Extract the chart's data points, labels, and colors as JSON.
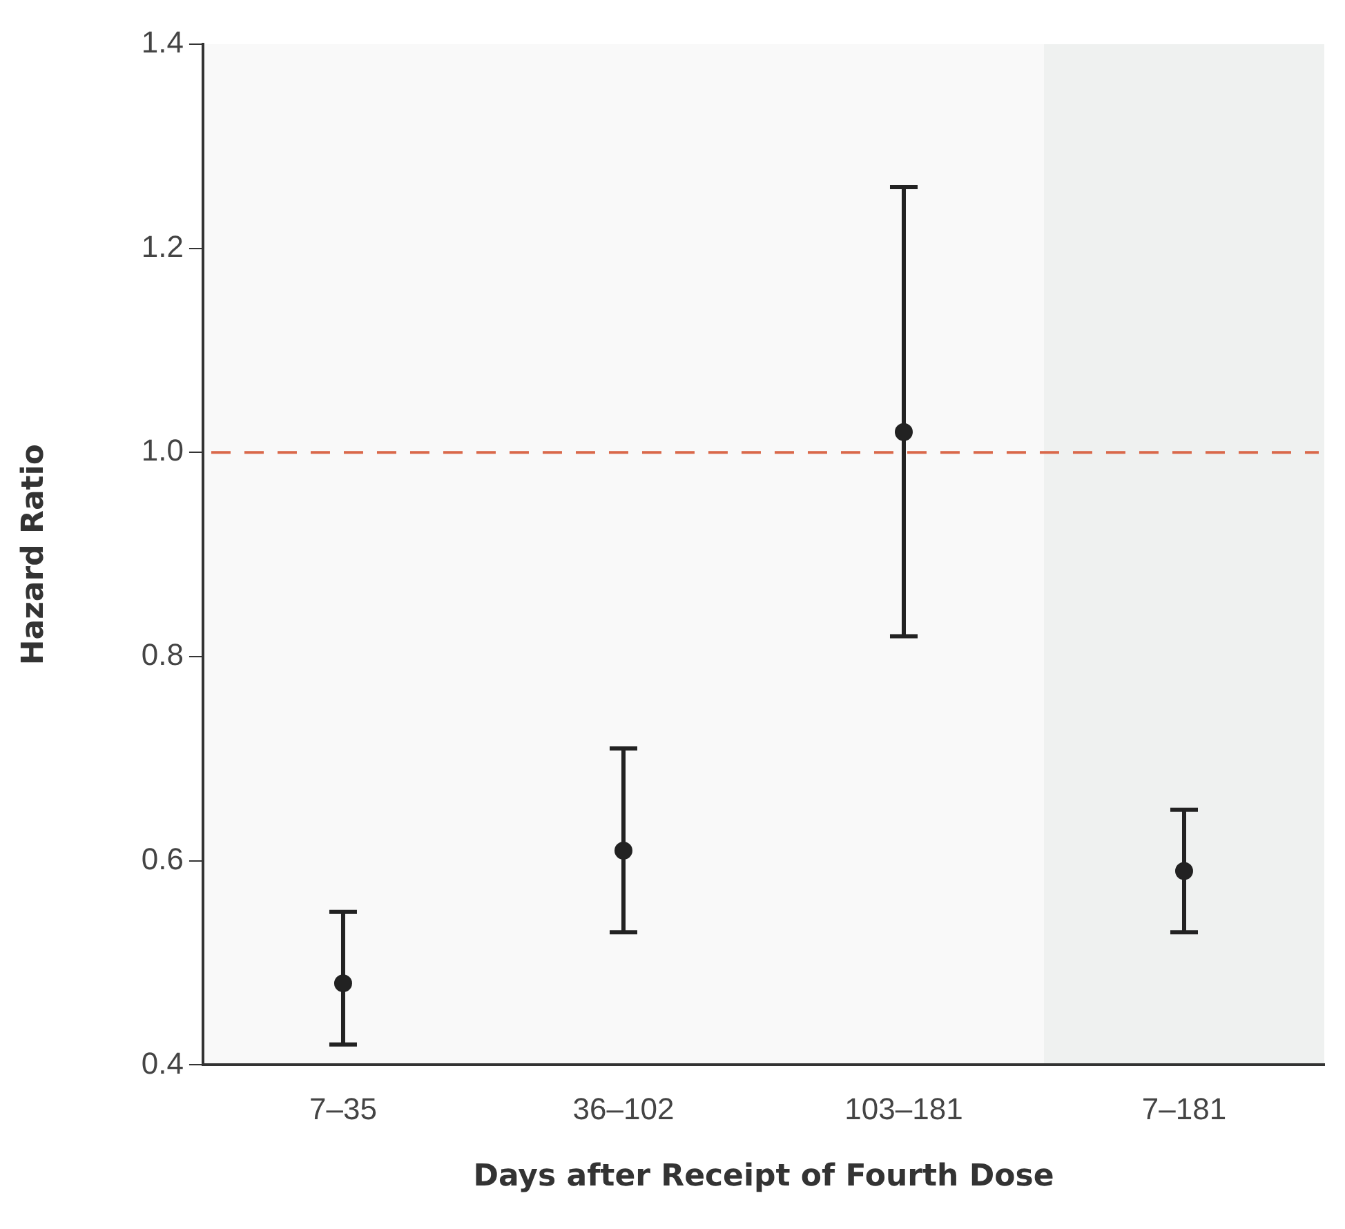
{
  "chart_data": {
    "type": "scatter",
    "xlabel": "Days after Receipt of Fourth Dose",
    "ylabel": "Hazard Ratio",
    "categories": [
      "7–35",
      "36–102",
      "103–181",
      "7–181"
    ],
    "series": [
      {
        "color": "#222222",
        "values": [
          0.48,
          0.61,
          1.02,
          0.59
        ],
        "errors": [
          [
            0.42,
            0.55
          ],
          [
            0.53,
            0.71
          ],
          [
            0.82,
            1.26
          ],
          [
            0.53,
            0.65
          ]
        ]
      }
    ],
    "ylim": [
      0.4,
      1.4
    ],
    "yticks": [
      {
        "value": 0.4,
        "label": "0.4"
      },
      {
        "value": 0.6,
        "label": "0.6"
      },
      {
        "value": 0.8,
        "label": "0.8"
      },
      {
        "value": 1.0,
        "label": "1.0"
      },
      {
        "value": 1.2,
        "label": "1.2"
      },
      {
        "value": 1.4,
        "label": "1.4"
      }
    ],
    "grid": false,
    "legend": false,
    "marker": "circle",
    "ref_lines": [
      {
        "axis": "y",
        "value": 1.0,
        "color": "#d9684a",
        "line_style": "dashed"
      }
    ],
    "bands": [
      {
        "axis": "x",
        "from": "7–181",
        "to": "7–181",
        "color": "#eff1f0"
      }
    ]
  }
}
